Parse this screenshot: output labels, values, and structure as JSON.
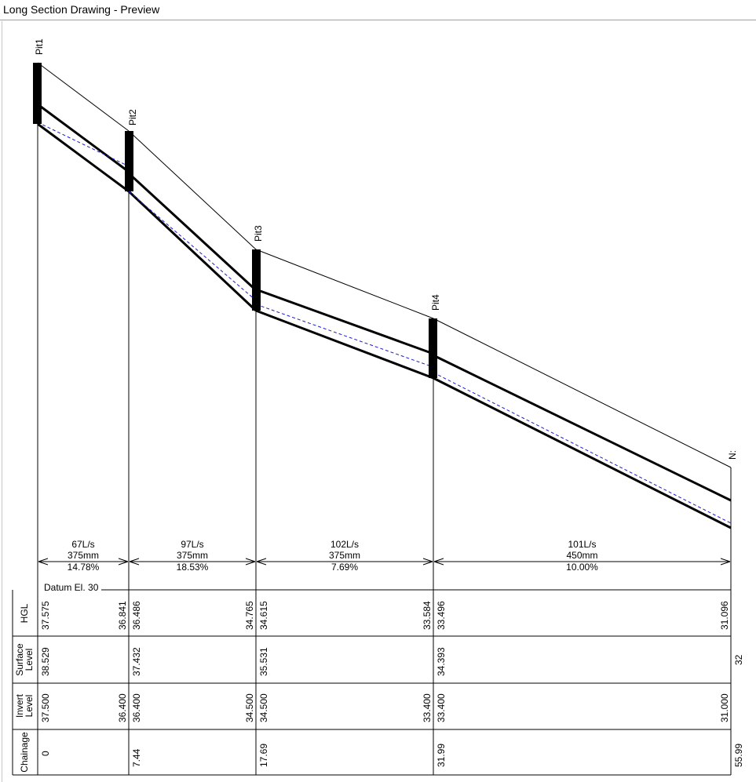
{
  "window": {
    "title": "Long Section Drawing - Preview"
  },
  "drawing": {
    "datum_label": "Datum El. 30",
    "row_labels": {
      "hgl": "HGL",
      "surface": [
        "Surface",
        "Level"
      ],
      "invert": [
        "Invert",
        "Level"
      ],
      "chainage": "Chainage"
    },
    "pits": [
      {
        "name": "Pit1",
        "chainage": "0",
        "surface": "38.529",
        "invert_out": "37.500",
        "hgl_out": "37.575"
      },
      {
        "name": "Pit2",
        "chainage": "7.44",
        "surface": "37.432",
        "invert_in": "36.400",
        "invert_out": "36.400",
        "hgl_in": "36.841",
        "hgl_out": "36.486"
      },
      {
        "name": "Pit3",
        "chainage": "17.69",
        "surface": "35.531",
        "invert_in": "34.500",
        "invert_out": "34.500",
        "hgl_in": "34.765",
        "hgl_out": "34.615"
      },
      {
        "name": "Pit4",
        "chainage": "31.99",
        "surface": "34.393",
        "invert_in": "33.400",
        "invert_out": "33.400",
        "hgl_in": "33.584",
        "hgl_out": "33.496"
      },
      {
        "name": "N:",
        "chainage": "55.99",
        "surface": "32",
        "invert_in": "31.000",
        "hgl_in": "31.096"
      }
    ],
    "pipes": [
      {
        "flow": "67L/s",
        "diameter": "375mm",
        "grade": "14.78%"
      },
      {
        "flow": "97L/s",
        "diameter": "375mm",
        "grade": "18.53%"
      },
      {
        "flow": "102L/s",
        "diameter": "375mm",
        "grade": "7.69%"
      },
      {
        "flow": "101L/s",
        "diameter": "450mm",
        "grade": "10.00%"
      }
    ]
  }
}
